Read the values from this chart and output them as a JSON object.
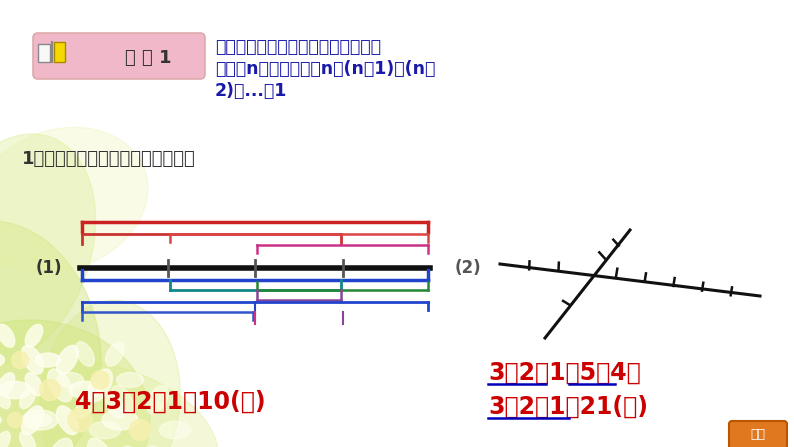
{
  "bg_color": "#f0ede0",
  "bg_top_color": "#e8e4d4",
  "title_box_color": "#f0b8c8",
  "title_text": "方 法 1",
  "title_text_color": "#333333",
  "rule_text_line1": "数线段的条数的规律：若基本线段的",
  "rule_text_line2": "条数是n，则总条数是n＋(n－1)＋(n－",
  "rule_text_line3": "2)＋...＋1",
  "rule_text_color": "#1a1aaa",
  "question_text": "1．下面各图中分别有多少条线段？",
  "question_text_color": "#333333",
  "label1": "(1)",
  "label2": "(2)",
  "answer1": "4＋3＋2＋1＝10(条)",
  "answer1_color": "#cc0000",
  "answer2_line1": "3＋2＋1＋5＋4＋",
  "answer2_line2": "3＋2＋1＝21(条)",
  "answer2_color": "#cc0000",
  "underline_color": "#0000bb",
  "return_btn_color": "#e07820",
  "return_btn_text": "返回",
  "return_btn_text_color": "#ffffff",
  "seg_colors": {
    "red": "#cc2222",
    "dark_red": "#992200",
    "pink": "#cc3388",
    "blue": "#2244cc",
    "dark_blue": "#112288",
    "teal": "#118888",
    "green": "#228833",
    "purple": "#884499",
    "orange": "#cc6622",
    "black": "#111111"
  }
}
